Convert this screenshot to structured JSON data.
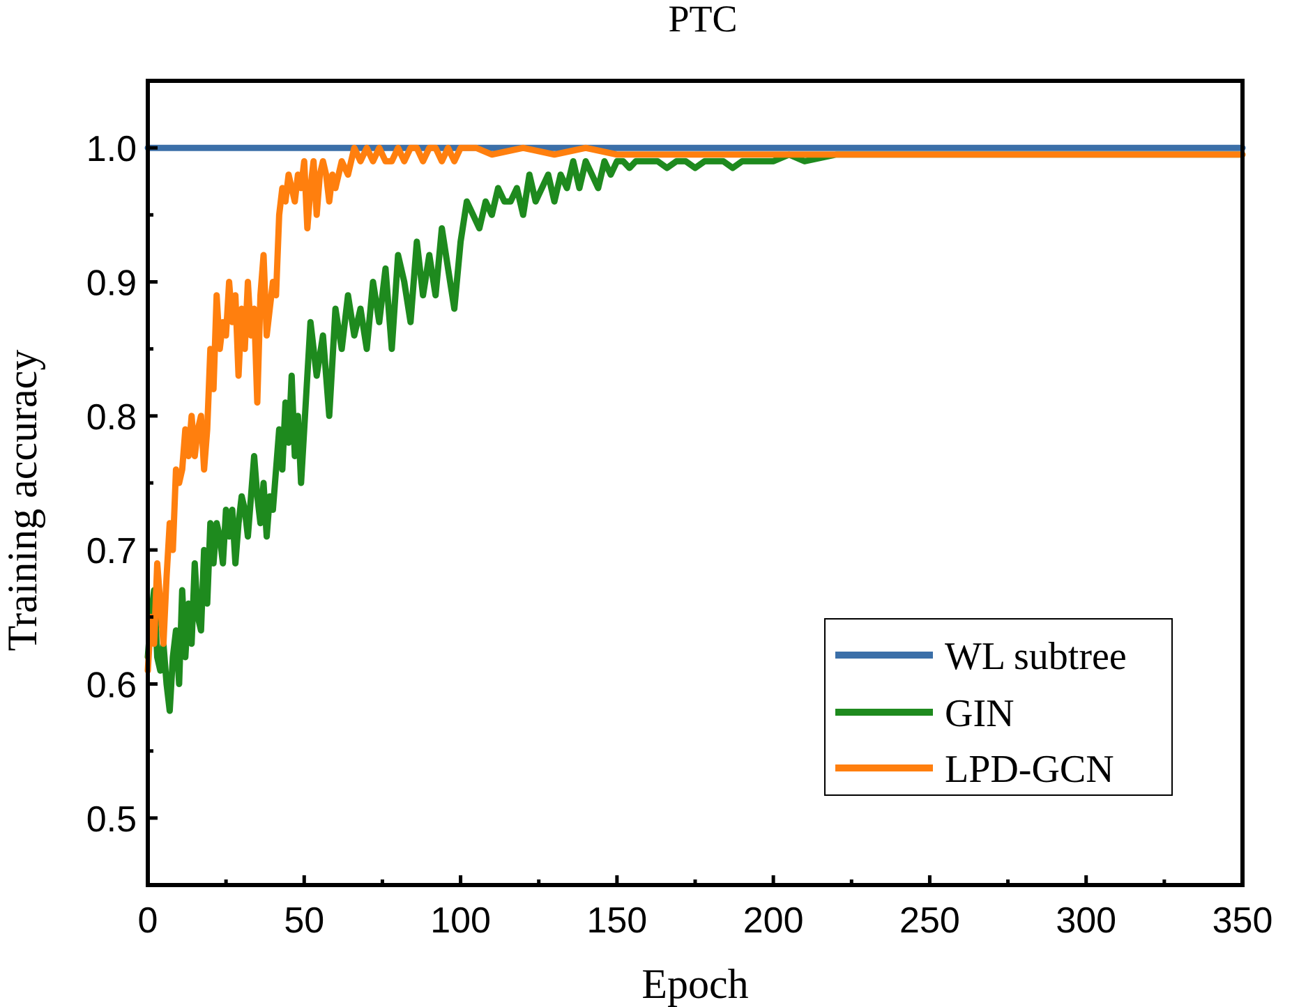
{
  "chart_data": {
    "type": "line",
    "title": "PTC",
    "xlabel": "Epoch",
    "ylabel": "Training accuracy",
    "xlim": [
      0,
      350
    ],
    "ylim": [
      0.45,
      1.05
    ],
    "xticks": [
      0,
      50,
      100,
      150,
      200,
      250,
      300,
      350
    ],
    "xtick_labels": [
      "0",
      "50",
      "100",
      "150",
      "200",
      "250",
      "300",
      "350"
    ],
    "yticks": [
      0.5,
      0.6,
      0.7,
      0.8,
      0.9,
      1.0
    ],
    "ytick_labels": [
      "0.5",
      "0.6",
      "0.7",
      "0.8",
      "0.9",
      "1.0"
    ],
    "grid": false,
    "legend_position": "bottom-right",
    "series": [
      {
        "name": "WL subtree",
        "color": "#3b6fa8",
        "x": [
          0,
          350
        ],
        "values": [
          1.0,
          1.0
        ]
      },
      {
        "name": "GIN",
        "color": "#1e8a1e",
        "x": [
          0,
          1,
          2,
          3,
          4,
          5,
          6,
          7,
          8,
          9,
          10,
          11,
          12,
          13,
          14,
          15,
          16,
          17,
          18,
          19,
          20,
          21,
          22,
          23,
          24,
          25,
          26,
          27,
          28,
          29,
          30,
          31,
          32,
          33,
          34,
          35,
          36,
          37,
          38,
          39,
          40,
          41,
          42,
          43,
          44,
          45,
          46,
          47,
          48,
          49,
          50,
          52,
          54,
          56,
          58,
          60,
          62,
          64,
          66,
          68,
          70,
          72,
          74,
          76,
          78,
          80,
          82,
          84,
          86,
          88,
          90,
          92,
          94,
          96,
          98,
          100,
          102,
          104,
          106,
          108,
          110,
          112,
          114,
          116,
          118,
          120,
          122,
          124,
          126,
          128,
          130,
          132,
          134,
          136,
          138,
          140,
          142,
          144,
          146,
          148,
          150,
          152,
          154,
          156,
          158,
          160,
          163,
          166,
          169,
          172,
          175,
          178,
          181,
          184,
          187,
          190,
          193,
          196,
          200,
          205,
          210,
          220,
          230,
          240,
          250,
          260,
          270,
          280,
          290,
          300,
          320,
          340,
          350
        ],
        "values": [
          0.62,
          0.65,
          0.67,
          0.62,
          0.61,
          0.63,
          0.6,
          0.58,
          0.62,
          0.64,
          0.6,
          0.67,
          0.62,
          0.66,
          0.63,
          0.69,
          0.65,
          0.64,
          0.7,
          0.66,
          0.72,
          0.69,
          0.72,
          0.71,
          0.69,
          0.73,
          0.71,
          0.73,
          0.69,
          0.72,
          0.74,
          0.73,
          0.71,
          0.74,
          0.77,
          0.74,
          0.72,
          0.75,
          0.71,
          0.74,
          0.73,
          0.76,
          0.79,
          0.76,
          0.81,
          0.78,
          0.83,
          0.77,
          0.8,
          0.75,
          0.79,
          0.87,
          0.83,
          0.86,
          0.8,
          0.88,
          0.85,
          0.89,
          0.86,
          0.88,
          0.85,
          0.9,
          0.87,
          0.91,
          0.85,
          0.92,
          0.9,
          0.87,
          0.93,
          0.89,
          0.92,
          0.89,
          0.94,
          0.91,
          0.88,
          0.93,
          0.96,
          0.95,
          0.94,
          0.96,
          0.95,
          0.97,
          0.96,
          0.96,
          0.97,
          0.95,
          0.98,
          0.96,
          0.97,
          0.98,
          0.96,
          0.98,
          0.97,
          0.99,
          0.97,
          0.99,
          0.98,
          0.97,
          0.99,
          0.98,
          0.99,
          0.99,
          0.985,
          0.99,
          0.99,
          0.99,
          0.99,
          0.985,
          0.99,
          0.99,
          0.985,
          0.99,
          0.99,
          0.99,
          0.985,
          0.99,
          0.99,
          0.99,
          0.99,
          0.995,
          0.99,
          0.995,
          0.995,
          0.995,
          0.995,
          0.995,
          0.995,
          0.995,
          0.995,
          0.995,
          0.995,
          0.995,
          0.995
        ]
      },
      {
        "name": "LPD-GCN",
        "color": "#ff7f0e",
        "x": [
          0,
          1,
          2,
          3,
          4,
          5,
          6,
          7,
          8,
          9,
          10,
          11,
          12,
          13,
          14,
          15,
          16,
          17,
          18,
          19,
          20,
          21,
          22,
          23,
          24,
          25,
          26,
          27,
          28,
          29,
          30,
          31,
          32,
          33,
          34,
          35,
          36,
          37,
          38,
          39,
          40,
          41,
          42,
          43,
          44,
          45,
          46,
          47,
          48,
          49,
          50,
          51,
          52,
          53,
          54,
          55,
          56,
          57,
          58,
          59,
          60,
          62,
          64,
          66,
          68,
          70,
          72,
          74,
          76,
          78,
          80,
          82,
          84,
          86,
          88,
          90,
          92,
          94,
          96,
          98,
          100,
          105,
          110,
          120,
          130,
          140,
          150,
          170,
          190,
          220,
          260,
          300,
          350
        ],
        "values": [
          0.61,
          0.65,
          0.63,
          0.69,
          0.66,
          0.63,
          0.68,
          0.72,
          0.7,
          0.76,
          0.75,
          0.76,
          0.79,
          0.77,
          0.8,
          0.77,
          0.79,
          0.8,
          0.76,
          0.79,
          0.85,
          0.82,
          0.89,
          0.85,
          0.87,
          0.86,
          0.9,
          0.87,
          0.89,
          0.83,
          0.88,
          0.85,
          0.9,
          0.86,
          0.88,
          0.81,
          0.89,
          0.92,
          0.86,
          0.88,
          0.9,
          0.89,
          0.95,
          0.97,
          0.96,
          0.98,
          0.97,
          0.96,
          0.98,
          0.97,
          0.99,
          0.94,
          0.97,
          0.99,
          0.95,
          0.98,
          0.99,
          0.98,
          0.96,
          0.98,
          0.97,
          0.99,
          0.98,
          1.0,
          0.99,
          1.0,
          0.99,
          1.0,
          0.99,
          0.99,
          1.0,
          0.99,
          1.0,
          1.0,
          0.99,
          1.0,
          1.0,
          0.99,
          1.0,
          0.99,
          1.0,
          1.0,
          0.995,
          1.0,
          0.995,
          1.0,
          0.995,
          0.995,
          0.995,
          0.995,
          0.995,
          0.995,
          0.995
        ]
      }
    ]
  }
}
